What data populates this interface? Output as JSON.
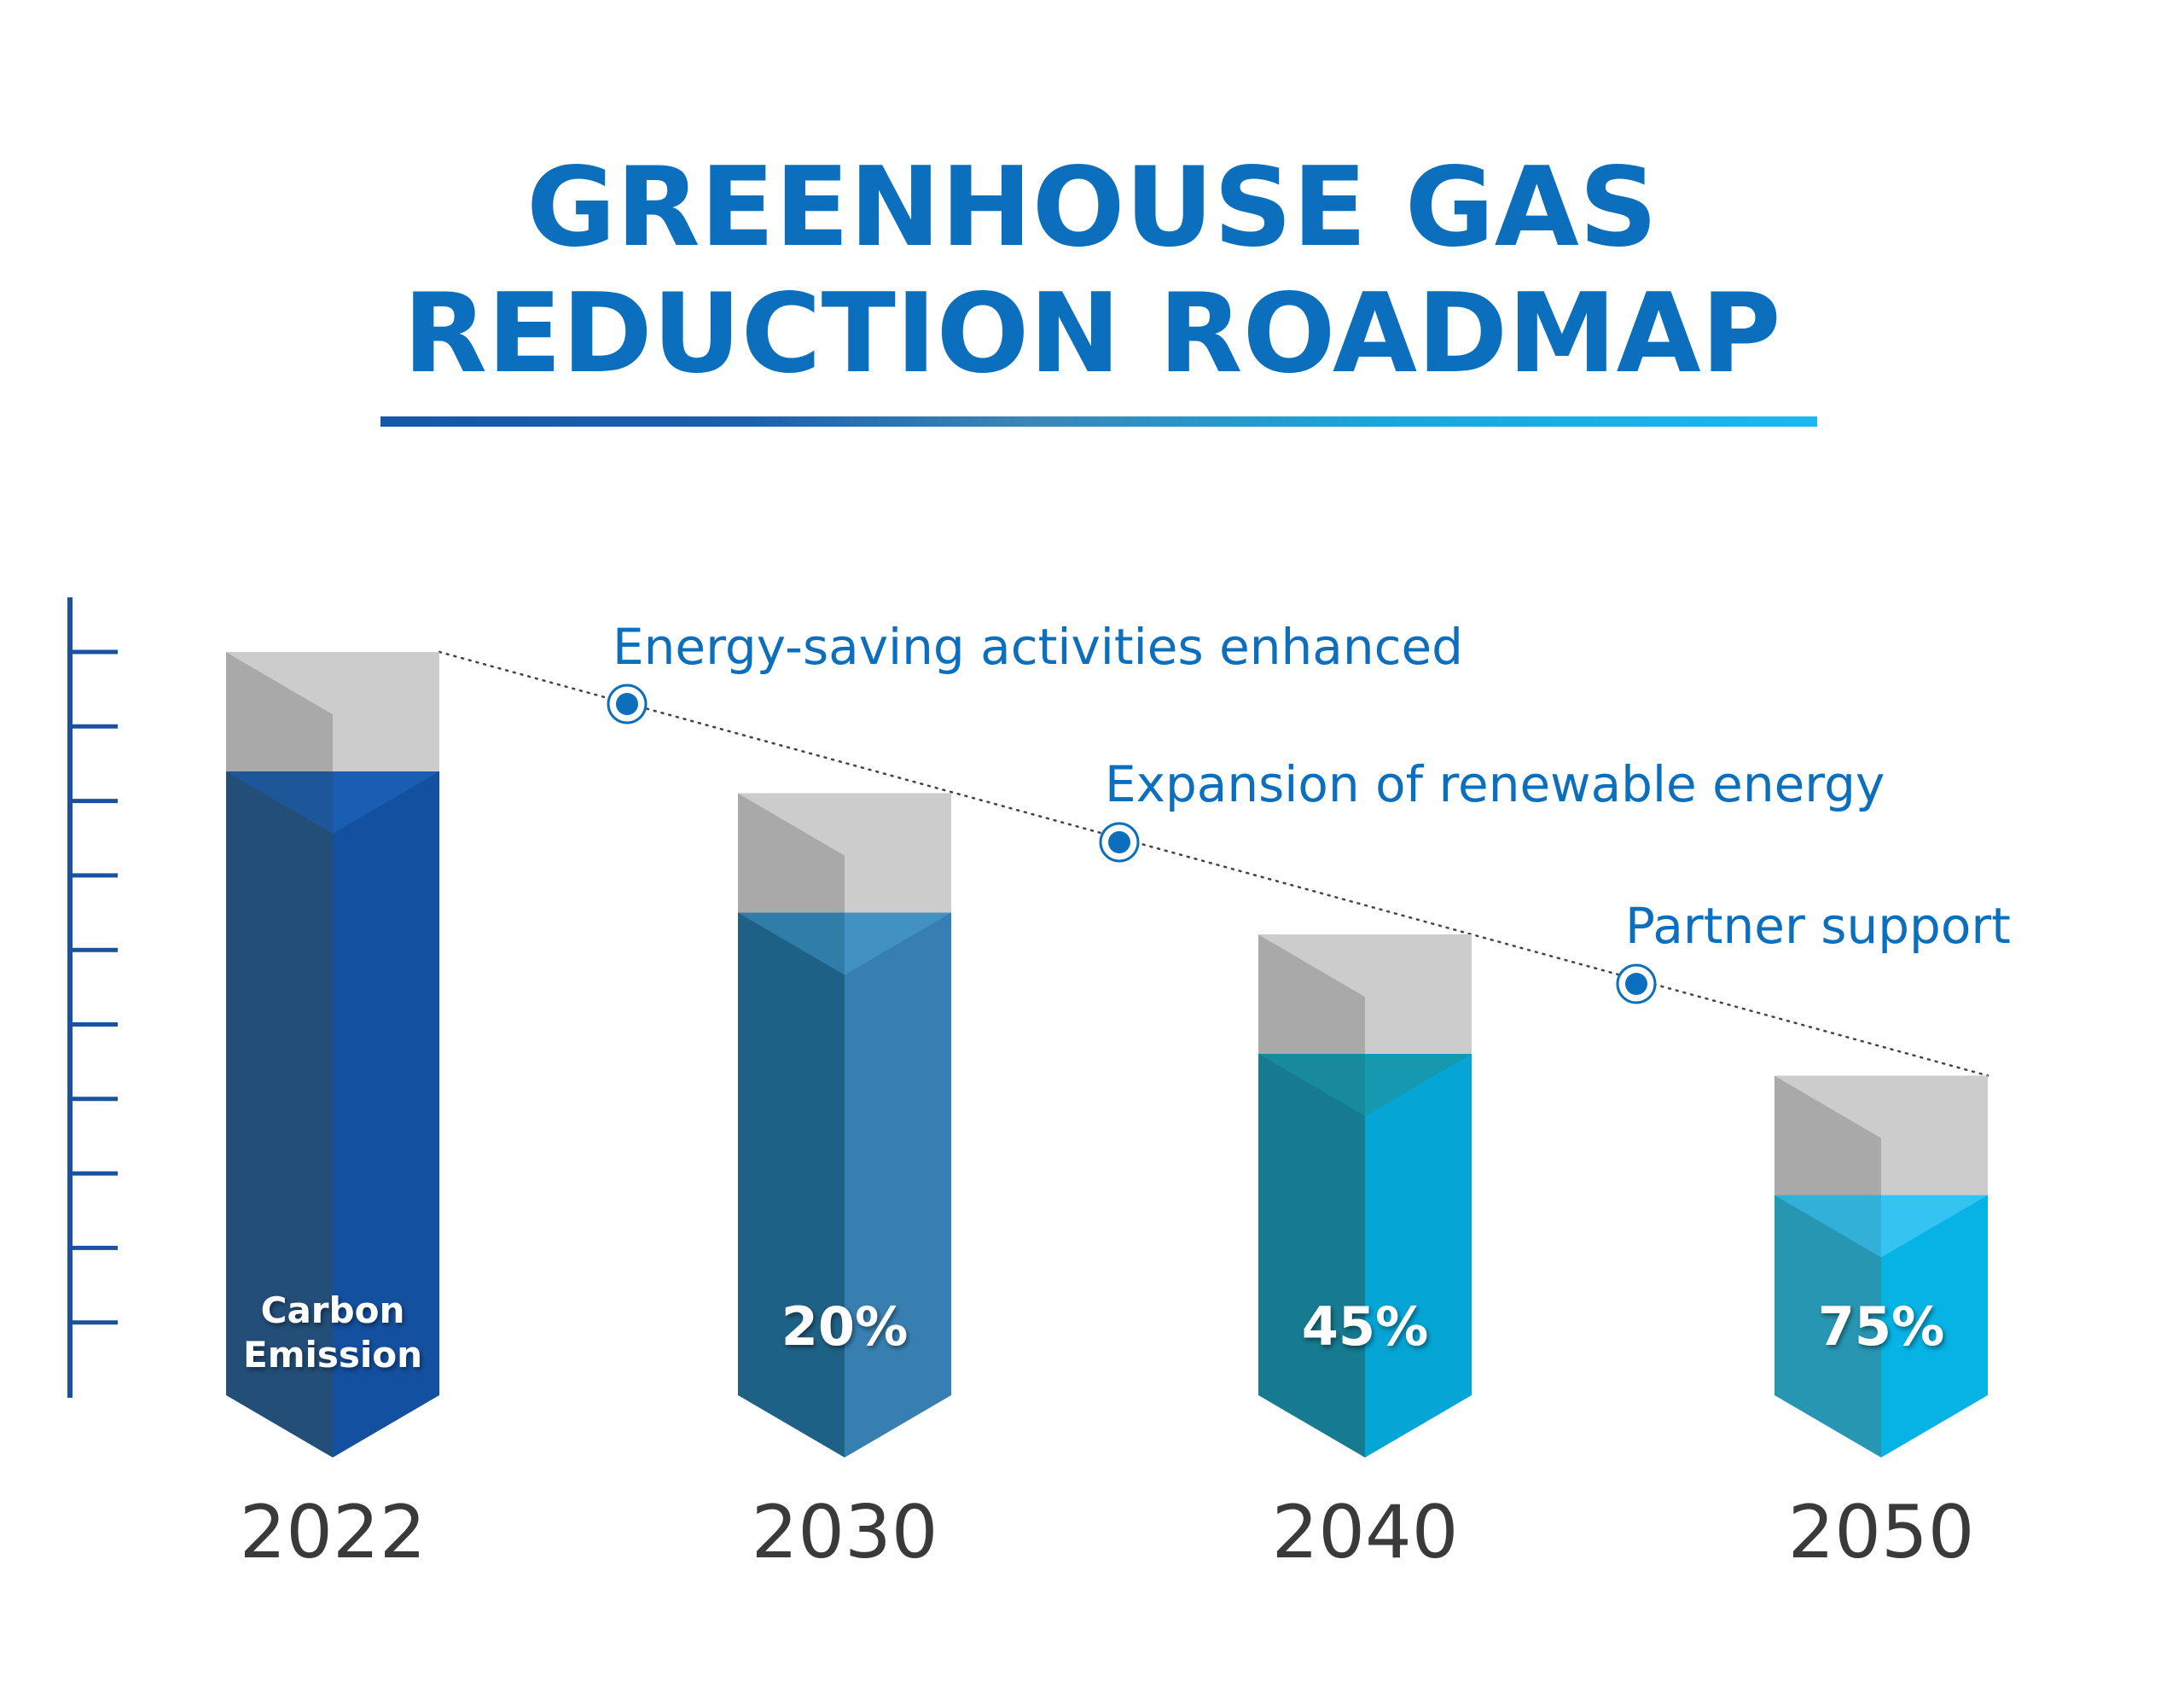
{
  "title": {
    "line1": "GREENHOUSE GAS",
    "line2": "REDUCTION ROADMAP"
  },
  "colors": {
    "title": "#0b6fbd",
    "axis": "#1a52a0",
    "gray_dark": "#a9a9a9",
    "gray_light": "#cdcccd",
    "year_text": "#3a3a3a"
  },
  "chart_data": {
    "type": "bar",
    "categories": [
      "2022",
      "2030",
      "2040",
      "2050"
    ],
    "reduction_labels": [
      "Carbon\nEmission",
      "20%",
      "45%",
      "75%"
    ],
    "heights": [
      100,
      81,
      62,
      43
    ],
    "bar_colors": [
      {
        "left": "#234e78",
        "right": "#1450a0",
        "top": "#1a60b5"
      },
      {
        "left": "#1e6186",
        "right": "#387fb1",
        "top": "#4394c6"
      },
      {
        "left": "#167a90",
        "right": "#05a5d6",
        "top": "#1996aa"
      },
      {
        "left": "#2796b3",
        "right": "#06b3e4",
        "top": "#3ec7f5"
      }
    ],
    "milestones": [
      {
        "label": "Energy-saving activities enhanced"
      },
      {
        "label": "Expansion of renewable energy"
      },
      {
        "label": "Partner support"
      }
    ],
    "y_ticks": 10,
    "trend_line": "dotted"
  }
}
